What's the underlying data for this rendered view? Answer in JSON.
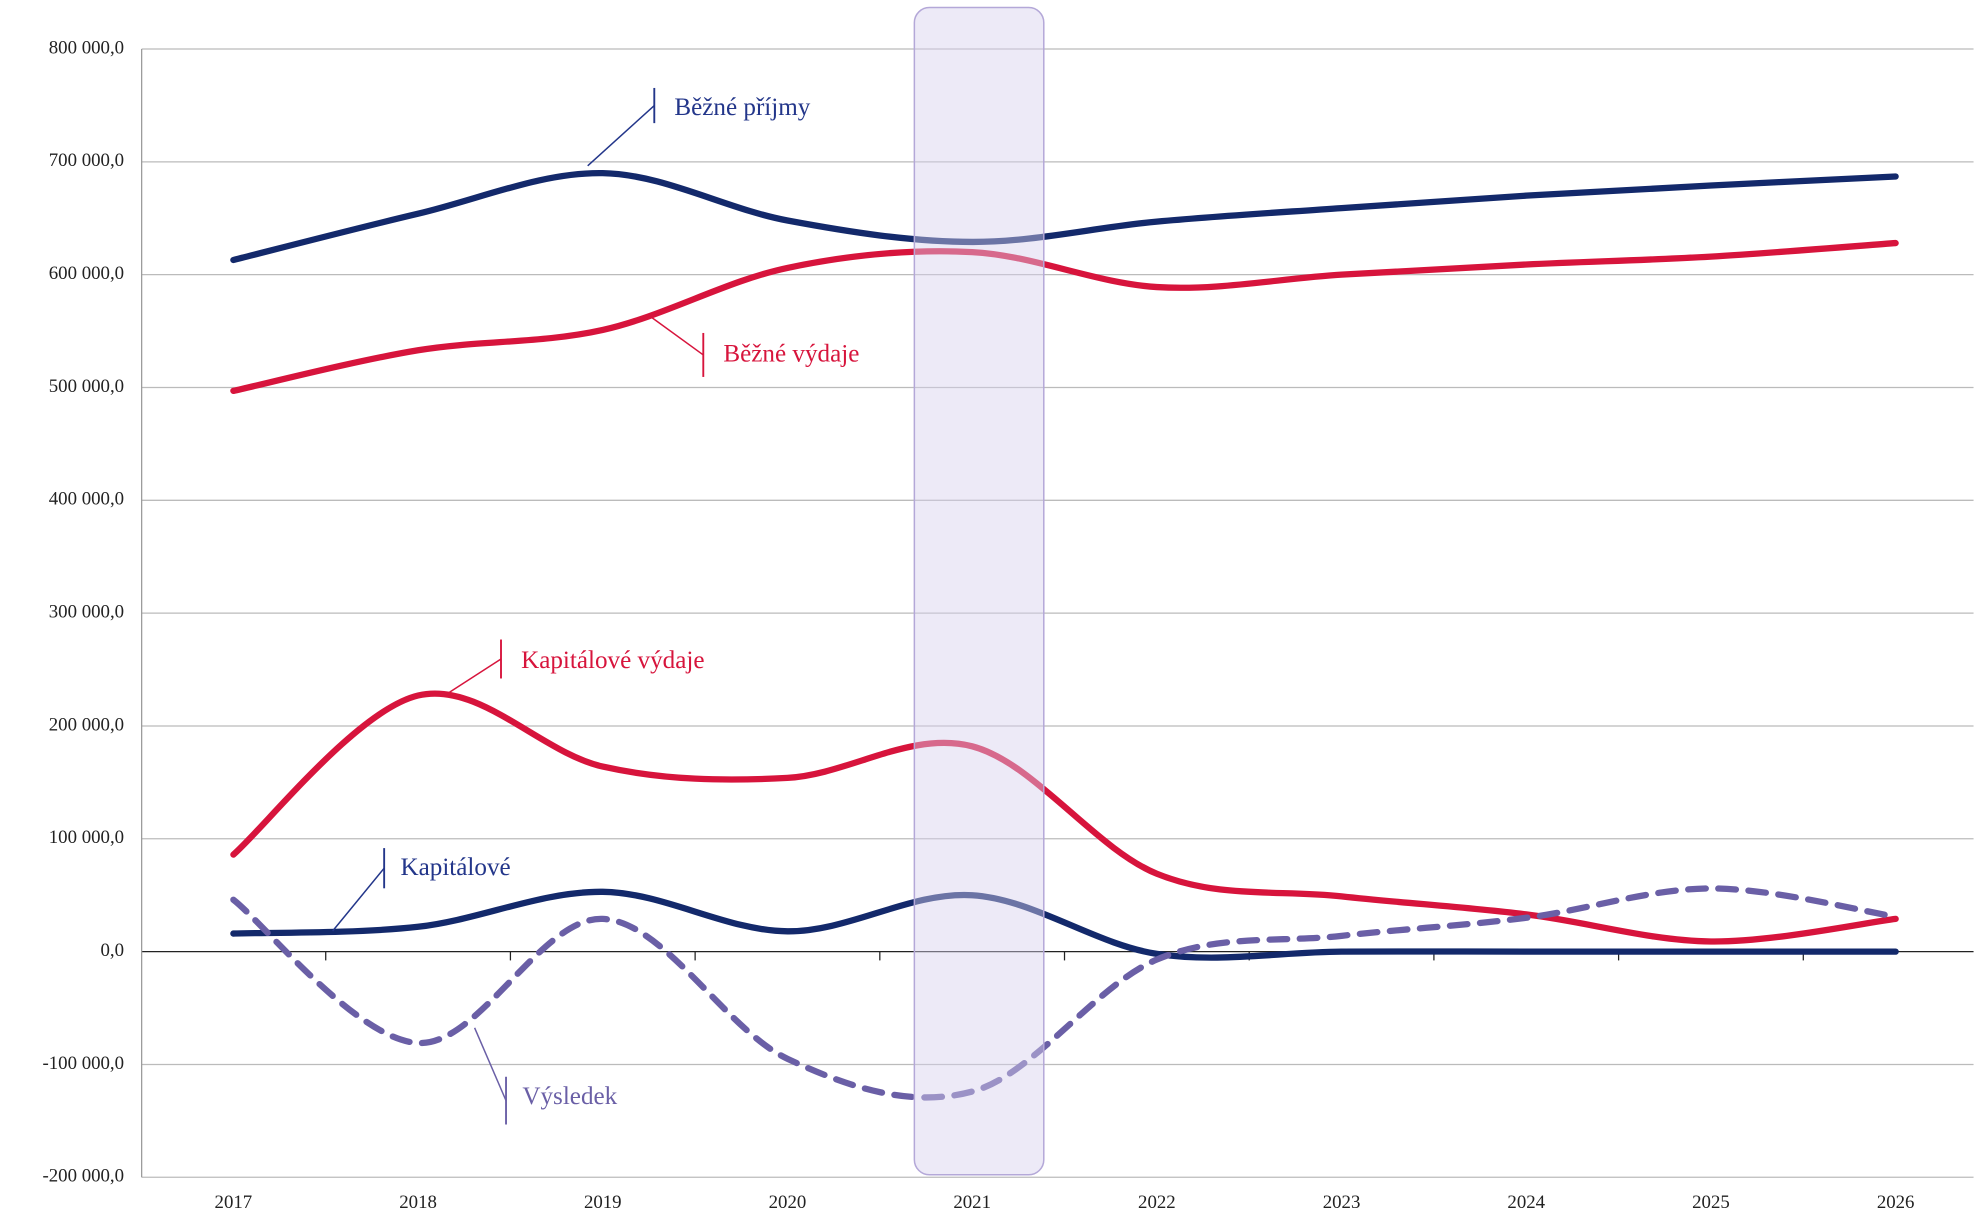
{
  "chart_data": {
    "type": "line",
    "categories": [
      "2017",
      "2018",
      "2019",
      "2020",
      "2021",
      "2022",
      "2023",
      "2024",
      "2025",
      "2026"
    ],
    "series": [
      {
        "name": "Běžné příjmy",
        "color": "#13296b",
        "values": [
          613000,
          654000,
          690000,
          648000,
          629000,
          647000,
          659000,
          670000,
          679000,
          687000
        ]
      },
      {
        "name": "Běžné výdaje",
        "color": "#d7143c",
        "values": [
          497000,
          533000,
          551000,
          606000,
          620000,
          589000,
          600000,
          609000,
          616000,
          628000
        ]
      },
      {
        "name": "Kapitálové výdaje",
        "color": "#d7143c",
        "values": [
          86000,
          227000,
          164000,
          154000,
          182000,
          69000,
          49000,
          33000,
          9000,
          29000
        ]
      },
      {
        "name": "Kapitálové",
        "color": "#13296b",
        "values": [
          16000,
          22000,
          53000,
          18000,
          50000,
          -2000,
          0,
          0,
          0,
          0
        ]
      },
      {
        "name": "Výsledek",
        "color": "#6a5fa6",
        "dashed": true,
        "values": [
          46000,
          -81000,
          29000,
          -95000,
          -124000,
          -7000,
          14000,
          30000,
          56000,
          31000
        ]
      }
    ],
    "ylim": [
      -200000,
      800000
    ],
    "yticks": [
      {
        "value": -200000,
        "label": "-200 000,0"
      },
      {
        "value": -100000,
        "label": "-100 000,0"
      },
      {
        "value": 0,
        "label": "0,0"
      },
      {
        "value": 100000,
        "label": "100 000,0"
      },
      {
        "value": 200000,
        "label": "200 000,0"
      },
      {
        "value": 300000,
        "label": "300 000,0"
      },
      {
        "value": 400000,
        "label": "400 000,0"
      },
      {
        "value": 500000,
        "label": "500 000,0"
      },
      {
        "value": 600000,
        "label": "600 000,0"
      },
      {
        "value": 700000,
        "label": "700 000,0"
      },
      {
        "value": 800000,
        "label": "800 000,0"
      }
    ],
    "grid": true
  }
}
